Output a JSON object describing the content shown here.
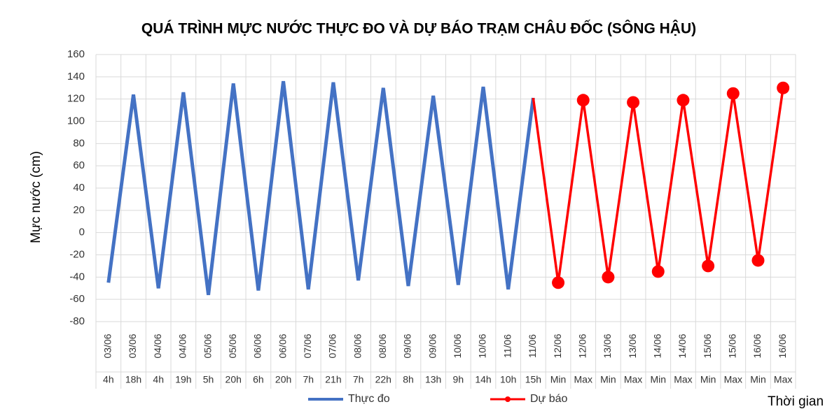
{
  "chart_data": {
    "type": "line",
    "title": "QUÁ TRÌNH MỰC NƯỚC THỰC ĐO VÀ DỰ BÁO TRẠM CHÂU ĐỐC (SÔNG HẬU)",
    "y_label": "Mực nước (cm)",
    "x_label": "Thời gian",
    "categories": [
      {
        "date": "03/06",
        "time": "4h"
      },
      {
        "date": "03/06",
        "time": "18h"
      },
      {
        "date": "04/06",
        "time": "4h"
      },
      {
        "date": "04/06",
        "time": "19h"
      },
      {
        "date": "05/06",
        "time": "5h"
      },
      {
        "date": "05/06",
        "time": "20h"
      },
      {
        "date": "06/06",
        "time": "6h"
      },
      {
        "date": "06/06",
        "time": "20h"
      },
      {
        "date": "07/06",
        "time": "7h"
      },
      {
        "date": "07/06",
        "time": "21h"
      },
      {
        "date": "08/06",
        "time": "7h"
      },
      {
        "date": "08/06",
        "time": "22h"
      },
      {
        "date": "09/06",
        "time": "8h"
      },
      {
        "date": "09/06",
        "time": "13h"
      },
      {
        "date": "10/06",
        "time": "9h"
      },
      {
        "date": "10/06",
        "time": "14h"
      },
      {
        "date": "11/06",
        "time": "10h"
      },
      {
        "date": "11/06",
        "time": "15h"
      },
      {
        "date": "12/06",
        "time": "Min"
      },
      {
        "date": "12/06",
        "time": "Max"
      },
      {
        "date": "13/06",
        "time": "Min"
      },
      {
        "date": "13/06",
        "time": "Max"
      },
      {
        "date": "14/06",
        "time": "Min"
      },
      {
        "date": "14/06",
        "time": "Max"
      },
      {
        "date": "15/06",
        "time": "Min"
      },
      {
        "date": "15/06",
        "time": "Max"
      },
      {
        "date": "16/06",
        "time": "Min"
      },
      {
        "date": "16/06",
        "time": "Max"
      }
    ],
    "series": [
      {
        "name": "Thực đo",
        "color": "#4472c4",
        "values": [
          -45,
          124,
          -50,
          126,
          -56,
          134,
          -52,
          136,
          -51,
          135,
          -43,
          130,
          -48,
          123,
          -47,
          131,
          -51,
          121,
          null,
          null,
          null,
          null,
          null,
          null,
          null,
          null,
          null,
          null
        ]
      },
      {
        "name": "Dự báo",
        "color": "#ff0000",
        "values": [
          null,
          null,
          null,
          null,
          null,
          null,
          null,
          null,
          null,
          null,
          null,
          null,
          null,
          null,
          null,
          null,
          null,
          121,
          -45,
          119,
          -40,
          117,
          -35,
          119,
          -30,
          125,
          -25,
          130
        ]
      }
    ],
    "ylim": [
      -80,
      160
    ],
    "yticks": [
      -80,
      -60,
      -40,
      -20,
      0,
      20,
      40,
      60,
      80,
      100,
      120,
      140,
      160
    ],
    "grid": true
  }
}
